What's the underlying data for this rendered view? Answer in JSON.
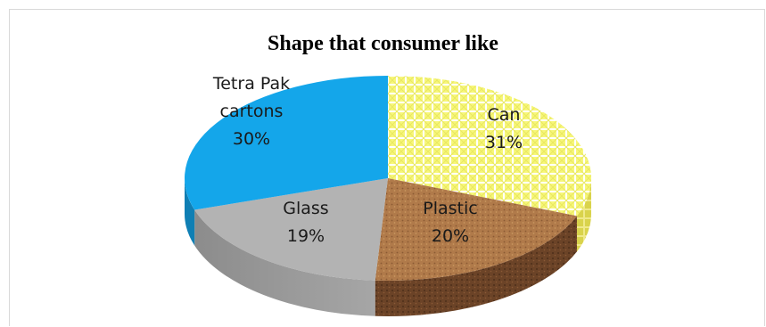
{
  "chart_data": {
    "type": "pie",
    "title": "Shape that consumer like",
    "slices": [
      {
        "label_lines": [
          "Can"
        ],
        "value": 31,
        "value_label": "31%",
        "color": "#f4f38a"
      },
      {
        "label_lines": [
          "Plastic"
        ],
        "value": 20,
        "value_label": "20%",
        "color": "#b07a4a"
      },
      {
        "label_lines": [
          "Glass"
        ],
        "value": 19,
        "value_label": "19%",
        "color": "#b0b0b0"
      },
      {
        "label_lines": [
          "Tetra Pak",
          "cartons"
        ],
        "value": 30,
        "value_label": "30%",
        "color": "#1aa7e8"
      }
    ],
    "style": "3d"
  }
}
